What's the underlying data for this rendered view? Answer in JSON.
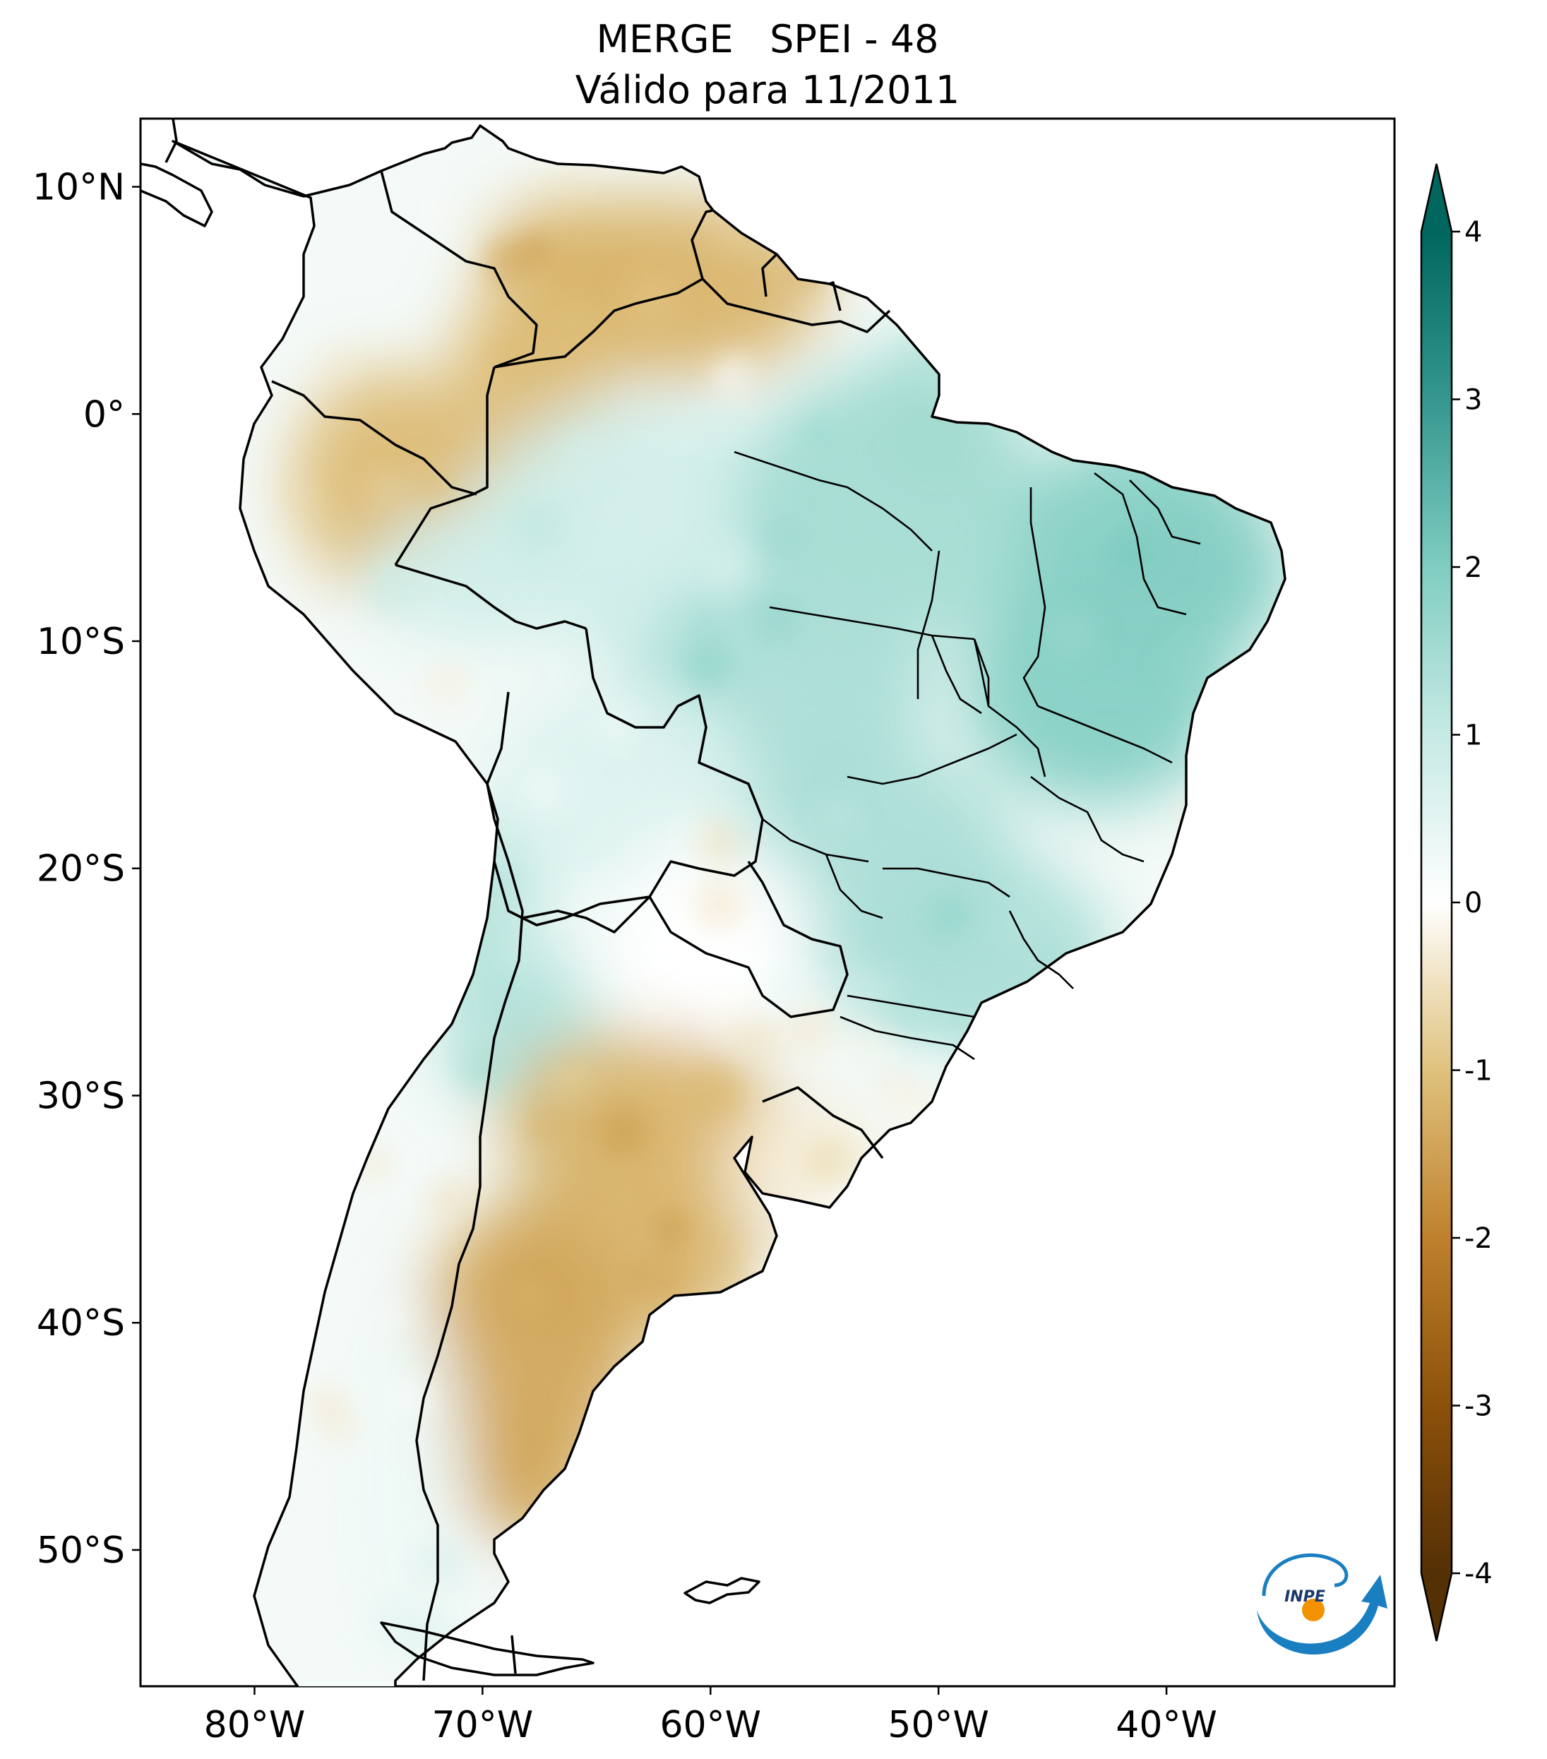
{
  "title": {
    "line1": "MERGE   SPEI - 48",
    "line2": "Válido para 11/2011"
  },
  "map": {
    "extent_lon": [
      -85,
      -30
    ],
    "extent_lat": [
      -56,
      13
    ],
    "lat_ticks": [
      {
        "value": 10,
        "label": "10°N"
      },
      {
        "value": 0,
        "label": "0°"
      },
      {
        "value": -10,
        "label": "10°S"
      },
      {
        "value": -20,
        "label": "20°S"
      },
      {
        "value": -30,
        "label": "30°S"
      },
      {
        "value": -40,
        "label": "40°S"
      },
      {
        "value": -50,
        "label": "50°S"
      }
    ],
    "lon_ticks": [
      {
        "value": -80,
        "label": "80°W"
      },
      {
        "value": -70,
        "label": "70°W"
      },
      {
        "value": -60,
        "label": "60°W"
      },
      {
        "value": -50,
        "label": "50°W"
      },
      {
        "value": -40,
        "label": "40°W"
      }
    ],
    "regions": [
      {
        "name": "Guianas/SE Venezuela",
        "spei": -1.2
      },
      {
        "name": "Southern Colombia / Amazonas",
        "spei": -1.1
      },
      {
        "name": "Amazonas (Brazil)",
        "spei": 0.8
      },
      {
        "name": "Pará",
        "spei": 1.5
      },
      {
        "name": "Nordeste",
        "spei": 1.9
      },
      {
        "name": "Centro-Oeste / Sudeste",
        "spei": 1.4
      },
      {
        "name": "Bolivia",
        "spei": 0.6
      },
      {
        "name": "Northern Chile / Andes",
        "spei": 1.3
      },
      {
        "name": "Paraguay / Chaco",
        "spei": 0.0
      },
      {
        "name": "Central Argentina",
        "spei": -1.2
      },
      {
        "name": "Patagonia",
        "spei": -1.4
      },
      {
        "name": "Uruguay",
        "spei": -0.3
      },
      {
        "name": "Southern Chile",
        "spei": 0.3
      }
    ]
  },
  "colorbar": {
    "ticks": [
      {
        "value": 4,
        "label": "4"
      },
      {
        "value": 3,
        "label": "3"
      },
      {
        "value": 2,
        "label": "2"
      },
      {
        "value": 1,
        "label": "1"
      },
      {
        "value": 0,
        "label": "0"
      },
      {
        "value": -1,
        "label": "-1"
      },
      {
        "value": -2,
        "label": "-2"
      },
      {
        "value": -3,
        "label": "-3"
      },
      {
        "value": -4,
        "label": "-4"
      }
    ],
    "min": -4,
    "max": 4,
    "extend": "both",
    "colormap": "BrBG",
    "colors": {
      "-4": "#543005",
      "-3": "#8c510a",
      "-2": "#bf812d",
      "-1": "#dfc27d",
      "0": "#ffffff",
      "1": "#c7eae5",
      "2": "#80cdc1",
      "3": "#35978f",
      "4": "#01665e"
    }
  },
  "logo": {
    "text": "INPE",
    "colors": {
      "arc": "#1a7fc1",
      "dot": "#f39200"
    }
  }
}
